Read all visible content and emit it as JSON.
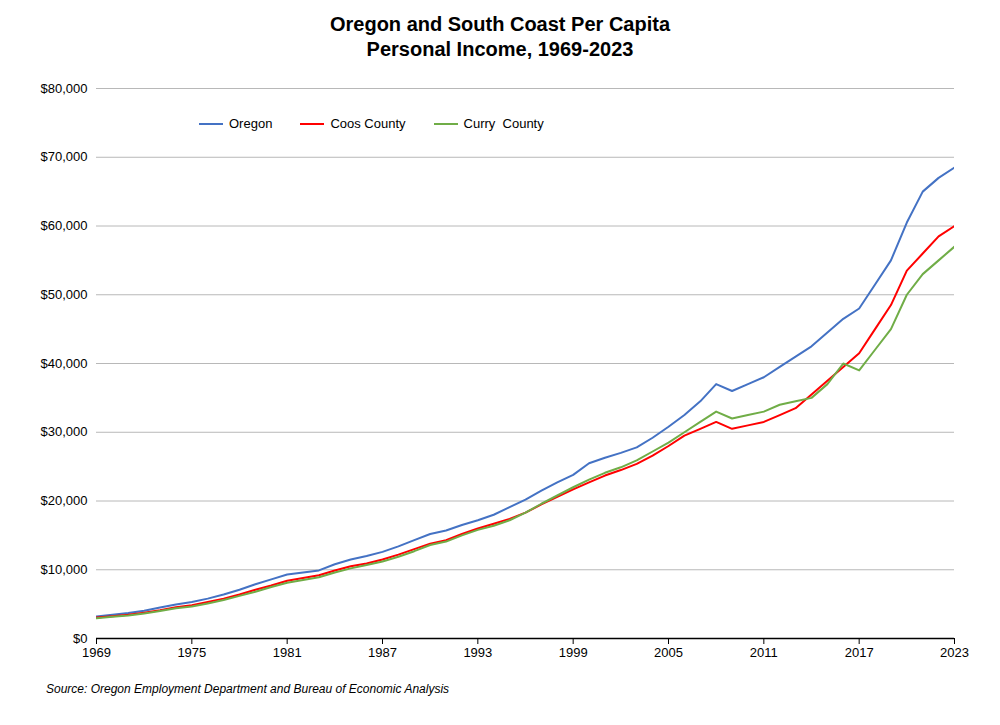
{
  "chart_data": {
    "type": "line",
    "title": "Oregon and South Coast Per Capita\nPersonal Income, 1969-2023",
    "source": "Source: Oregon Employment Department and Bureau of Economic Analysis",
    "x": [
      1969,
      1970,
      1971,
      1972,
      1973,
      1974,
      1975,
      1976,
      1977,
      1978,
      1979,
      1980,
      1981,
      1982,
      1983,
      1984,
      1985,
      1986,
      1987,
      1988,
      1989,
      1990,
      1991,
      1992,
      1993,
      1994,
      1995,
      1996,
      1997,
      1998,
      1999,
      2000,
      2001,
      2002,
      2003,
      2004,
      2005,
      2006,
      2007,
      2008,
      2009,
      2010,
      2011,
      2012,
      2013,
      2014,
      2015,
      2016,
      2017,
      2018,
      2019,
      2020,
      2021,
      2022,
      2023
    ],
    "series": [
      {
        "name": "Oregon",
        "color": "#4472C4",
        "values": [
          3200,
          3450,
          3700,
          4050,
          4500,
          4950,
          5300,
          5800,
          6400,
          7100,
          7900,
          8600,
          9300,
          9600,
          9900,
          10800,
          11500,
          12000,
          12600,
          13400,
          14300,
          15200,
          15700,
          16500,
          17200,
          18000,
          19100,
          20200,
          21500,
          22700,
          23800,
          25500,
          26300,
          27000,
          27800,
          29200,
          30800,
          32500,
          34500,
          37000,
          36000,
          37000,
          38000,
          39500,
          41000,
          42500,
          44500,
          46500,
          48000,
          51500,
          55000,
          60500,
          65000,
          67000,
          68500
        ]
      },
      {
        "name": "Coos County",
        "color": "#FF0000",
        "values": [
          3050,
          3250,
          3450,
          3750,
          4100,
          4550,
          4850,
          5300,
          5800,
          6400,
          7100,
          7700,
          8400,
          8800,
          9200,
          9900,
          10500,
          10900,
          11500,
          12200,
          13000,
          13800,
          14300,
          15200,
          16000,
          16700,
          17400,
          18300,
          19500,
          20600,
          21700,
          22700,
          23700,
          24500,
          25400,
          26600,
          28000,
          29500,
          30500,
          31500,
          30500,
          31000,
          31500,
          32500,
          33500,
          35500,
          37500,
          39500,
          41500,
          45000,
          48500,
          53500,
          56000,
          58500,
          60000
        ]
      },
      {
        "name": "Curry  County",
        "color": "#70AD47",
        "values": [
          2950,
          3150,
          3350,
          3650,
          4000,
          4400,
          4650,
          5100,
          5600,
          6200,
          6800,
          7500,
          8100,
          8500,
          8900,
          9600,
          10200,
          10700,
          11200,
          11900,
          12700,
          13600,
          14100,
          15000,
          15800,
          16400,
          17200,
          18300,
          19600,
          20800,
          22000,
          23100,
          24100,
          24900,
          25900,
          27200,
          28500,
          30000,
          31500,
          33000,
          32000,
          32500,
          33000,
          34000,
          34500,
          35000,
          37000,
          40000,
          39000,
          42000,
          45000,
          50000,
          53000,
          55000,
          57000
        ]
      }
    ],
    "xlim": [
      1969,
      2023
    ],
    "xticks": [
      1969,
      1975,
      1981,
      1987,
      1993,
      1999,
      2005,
      2011,
      2017,
      2023
    ],
    "ylim": [
      0,
      80000
    ],
    "yticks": [
      {
        "value": 0,
        "label": "$0"
      },
      {
        "value": 10000,
        "label": "$10,000"
      },
      {
        "value": 20000,
        "label": "$20,000"
      },
      {
        "value": 30000,
        "label": "$30,000"
      },
      {
        "value": 40000,
        "label": "$40,000"
      },
      {
        "value": 50000,
        "label": "$50,000"
      },
      {
        "value": 60000,
        "label": "$60,000"
      },
      {
        "value": 70000,
        "label": "$70,000"
      },
      {
        "value": 80000,
        "label": "$80,000"
      }
    ],
    "grid": true,
    "legend": "upper left"
  }
}
